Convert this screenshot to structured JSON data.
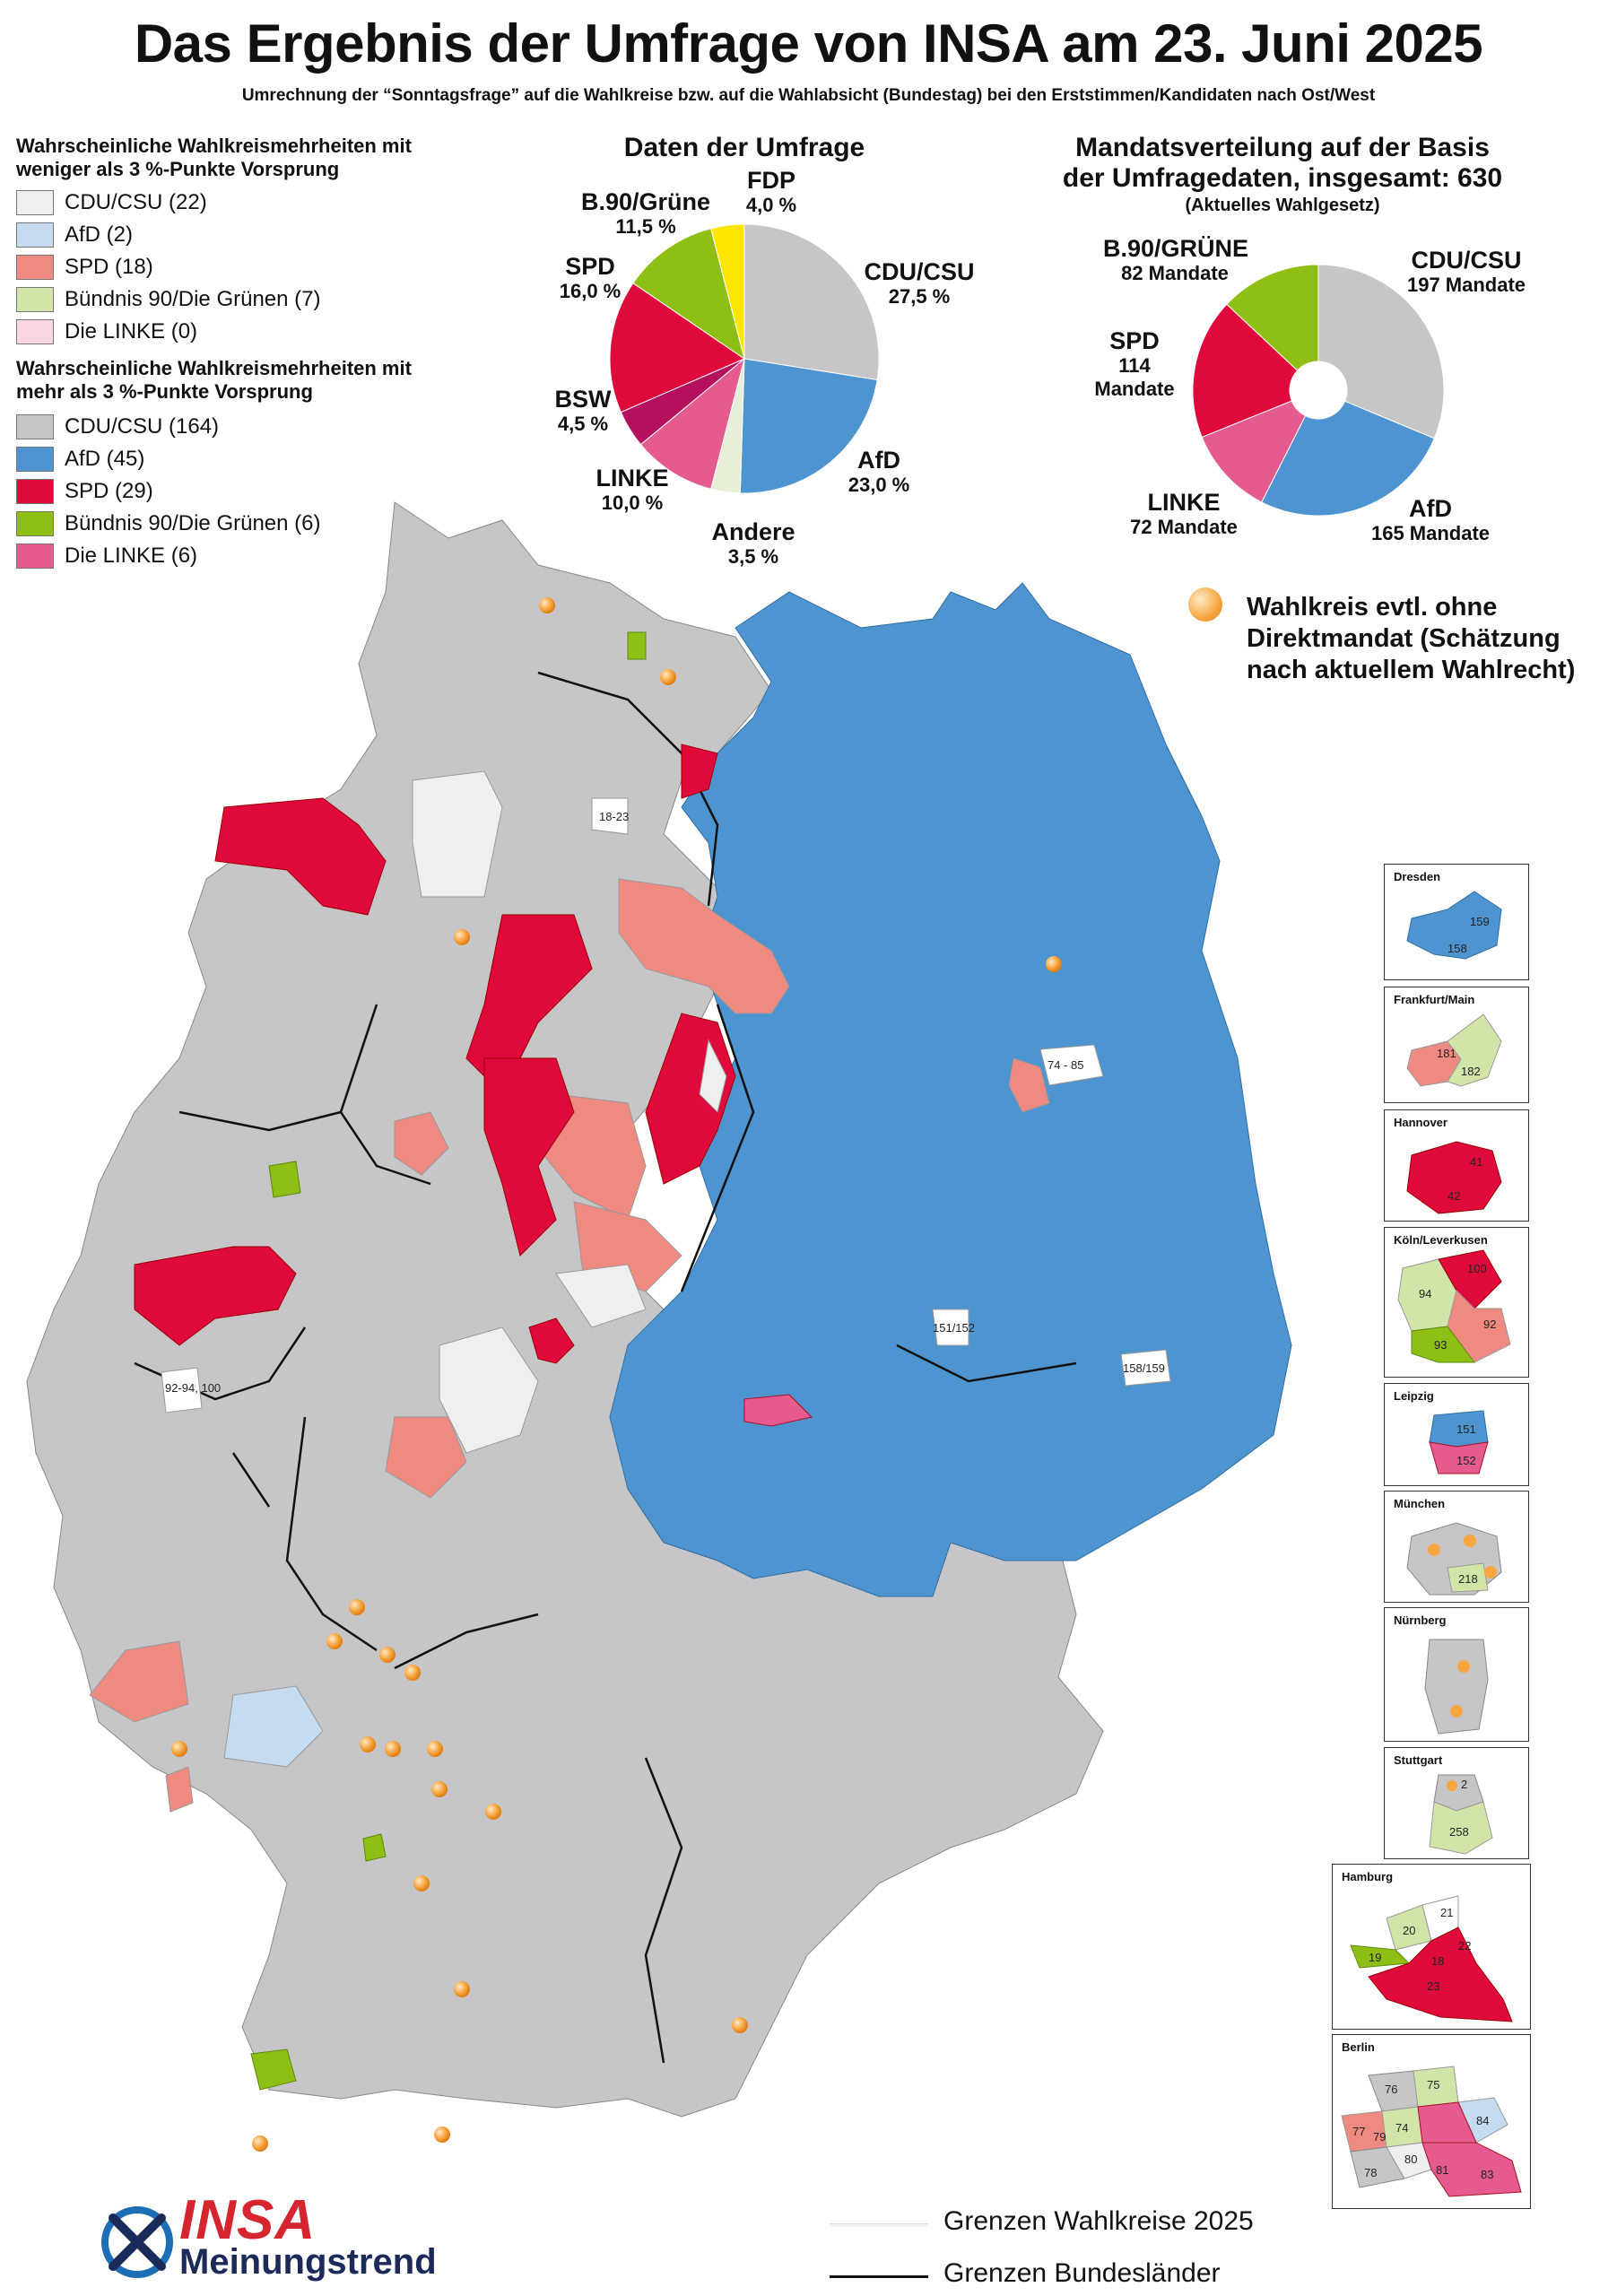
{
  "header": {
    "title": "Das Ergebnis der Umfrage von INSA am 23. Juni 2025",
    "subtitle": "Umrechnung der “Sonntagsfrage” auf die Wahlkreise bzw. auf die Wahlabsicht (Bundestag) bei den Erststimmen/Kandidaten nach Ost/West"
  },
  "legend": {
    "group1_title": "Wahrscheinliche Wahlkreismehrheiten mit weniger als 3 %-Punkte Vorsprung",
    "group1": [
      {
        "label": "CDU/CSU (22)",
        "color": "#efefef"
      },
      {
        "label": "AfD (2)",
        "color": "#c5dbf0"
      },
      {
        "label": "SPD (18)",
        "color": "#ee8a80"
      },
      {
        "label": "Bündnis 90/Die Grünen (7)",
        "color": "#d2e5a8"
      },
      {
        "label": "Die LINKE (0)",
        "color": "#f9d7e1"
      }
    ],
    "group2_title": "Wahrscheinliche Wahlkreismehrheiten mit mehr als 3 %-Punkte Vorsprung",
    "group2": [
      {
        "label": "CDU/CSU (164)",
        "color": "#c6c6c8"
      },
      {
        "label": "AfD (45)",
        "color": "#4d94d0"
      },
      {
        "label": "SPD (29)",
        "color": "#e0093b"
      },
      {
        "label": "Bündnis 90/Die Grünen (6)",
        "color": "#8fbf15"
      },
      {
        "label": "Die LINKE (6)",
        "color": "#e55b8f"
      }
    ]
  },
  "survey_chart": {
    "title": "Daten der Umfrage",
    "labels": {
      "cdu": {
        "name": "CDU/CSU",
        "value": "27,5 %"
      },
      "afd": {
        "name": "AfD",
        "value": "23,0 %"
      },
      "andere": {
        "name": "Andere",
        "value": "3,5 %"
      },
      "linke": {
        "name": "LINKE",
        "value": "10,0 %"
      },
      "bsw": {
        "name": "BSW",
        "value": "4,5 %"
      },
      "spd": {
        "name": "SPD",
        "value": "16,0 %"
      },
      "gruene": {
        "name": "B.90/Grüne",
        "value": "11,5 %"
      },
      "fdp": {
        "name": "FDP",
        "value": "4,0 %"
      }
    }
  },
  "seat_chart": {
    "title_line1": "Mandatsverteilung auf der Basis",
    "title_line2": "der Umfragedaten, insgesamt: 630",
    "subtitle": "(Aktuelles Wahlgesetz)",
    "labels": {
      "cdu": {
        "name": "CDU/CSU",
        "value": "197 Mandate"
      },
      "afd": {
        "name": "AfD",
        "value": "165 Mandate"
      },
      "linke": {
        "name": "LINKE",
        "value": "72 Mandate"
      },
      "spd": {
        "name": "SPD",
        "value": "114",
        "value2": "Mandate"
      },
      "gruene": {
        "name": "B.90/GRÜNE",
        "value": "82 Mandate"
      }
    }
  },
  "chart_data": [
    {
      "type": "pie",
      "title": "Daten der Umfrage",
      "categories": [
        "CDU/CSU",
        "AfD",
        "Andere",
        "LINKE",
        "BSW",
        "SPD",
        "B.90/Grüne",
        "FDP"
      ],
      "values": [
        27.5,
        23.0,
        3.5,
        10.0,
        4.5,
        16.0,
        11.5,
        4.0
      ],
      "colors": [
        "#c6c6c8",
        "#4d94d0",
        "#e7efd8",
        "#e55b8f",
        "#b5105e",
        "#e0093b",
        "#8fbf15",
        "#ffe600"
      ]
    },
    {
      "type": "pie",
      "title": "Mandatsverteilung auf der Basis der Umfragedaten, insgesamt: 630",
      "categories": [
        "CDU/CSU",
        "AfD",
        "LINKE",
        "SPD",
        "B.90/GRÜNE"
      ],
      "values": [
        197,
        165,
        72,
        114,
        82
      ],
      "colors": [
        "#c6c6c8",
        "#4d94d0",
        "#e55b8f",
        "#e0093b",
        "#8fbf15"
      ]
    }
  ],
  "note": {
    "line1": "Wahlkreis evtl. ohne",
    "line2": "Direktmandat (Schätzung",
    "line3": "nach aktuellem Wahlrecht)"
  },
  "map": {
    "labels": [
      "18-23",
      "74 - 85",
      "151/152",
      "158/159",
      "92-94, 100"
    ]
  },
  "insets": [
    {
      "title": "Dresden",
      "nums": [
        "159",
        "158"
      ]
    },
    {
      "title": "Frankfurt/Main",
      "nums": [
        "181",
        "182"
      ]
    },
    {
      "title": "Hannover",
      "nums": [
        "41",
        "42"
      ]
    },
    {
      "title": "Köln/Leverkusen",
      "nums": [
        "100",
        "94",
        "92",
        "93"
      ]
    },
    {
      "title": "Leipzig",
      "nums": [
        "151",
        "152"
      ]
    },
    {
      "title": "München",
      "nums": [
        "218"
      ]
    },
    {
      "title": "Nürnberg",
      "nums": []
    },
    {
      "title": "Stuttgart",
      "nums": [
        "2",
        "258"
      ]
    },
    {
      "title": "Hamburg",
      "nums": [
        "20",
        "21",
        "19",
        "22",
        "18",
        "23"
      ]
    },
    {
      "title": "Berlin",
      "nums": [
        "76",
        "75",
        "77",
        "74",
        "84",
        "79",
        "80",
        "78",
        "81",
        "83"
      ]
    }
  ],
  "footer": {
    "logo_main": "INSA",
    "logo_sub": "Meinungstrend",
    "boundary1": "Grenzen Wahlkreise 2025",
    "boundary2": "Grenzen Bundesländer"
  }
}
